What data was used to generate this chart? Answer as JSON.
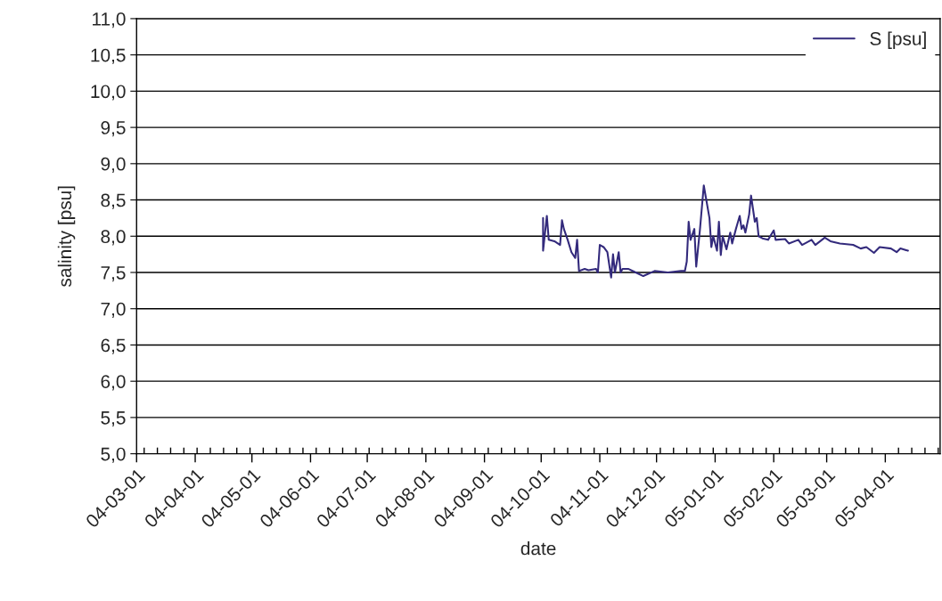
{
  "chart_data": {
    "type": "line",
    "xlabel": "date",
    "ylabel": "salinity [psu]",
    "xlim": [
      "2004-03-01",
      "2005-04-30"
    ],
    "xticks": [
      {
        "value": "2004-03-01",
        "label": "04-03-01"
      },
      {
        "value": "2004-04-01",
        "label": "04-04-01"
      },
      {
        "value": "2004-05-01",
        "label": "04-05-01"
      },
      {
        "value": "2004-06-01",
        "label": "04-06-01"
      },
      {
        "value": "2004-07-01",
        "label": "04-07-01"
      },
      {
        "value": "2004-08-01",
        "label": "04-08-01"
      },
      {
        "value": "2004-09-01",
        "label": "04-09-01"
      },
      {
        "value": "2004-10-01",
        "label": "04-10-01"
      },
      {
        "value": "2004-11-01",
        "label": "04-11-01"
      },
      {
        "value": "2004-12-01",
        "label": "04-12-01"
      },
      {
        "value": "2005-01-01",
        "label": "05-01-01"
      },
      {
        "value": "2005-02-01",
        "label": "05-02-01"
      },
      {
        "value": "2005-03-01",
        "label": "05-03-01"
      },
      {
        "value": "2005-04-01",
        "label": "05-04-01"
      }
    ],
    "ylim": [
      5,
      11
    ],
    "yticks": [
      {
        "value": 5,
        "label": "5,0"
      },
      {
        "value": 5.5,
        "label": "5,5"
      },
      {
        "value": 6,
        "label": "6,0"
      },
      {
        "value": 6.5,
        "label": "6,5"
      },
      {
        "value": 7,
        "label": "7,0"
      },
      {
        "value": 7.5,
        "label": "7,5"
      },
      {
        "value": 8,
        "label": "8,0"
      },
      {
        "value": 8.5,
        "label": "8,5"
      },
      {
        "value": 9,
        "label": "9,0"
      },
      {
        "value": 9.5,
        "label": "9,5"
      },
      {
        "value": 10,
        "label": "10,0"
      },
      {
        "value": 10.5,
        "label": "10,5"
      },
      {
        "value": 11,
        "label": "11,0"
      }
    ],
    "grid": "y",
    "legend": "top right",
    "marker": "none",
    "line_style": "solid",
    "series": [
      {
        "name": "S [psu]",
        "color": "#332a7c",
        "x": [
          "2004-10-02",
          "2004-10-02",
          "2004-10-04",
          "2004-10-05",
          "2004-10-08",
          "2004-10-11",
          "2004-10-12",
          "2004-10-13",
          "2004-10-15",
          "2004-10-17",
          "2004-10-19",
          "2004-10-20",
          "2004-10-21",
          "2004-10-24",
          "2004-10-26",
          "2004-10-30",
          "2004-10-31",
          "2004-11-01",
          "2004-11-03",
          "2004-11-05",
          "2004-11-07",
          "2004-11-08",
          "2004-11-09",
          "2004-11-11",
          "2004-11-12",
          "2004-11-13",
          "2004-11-16",
          "2004-11-20",
          "2004-11-24",
          "2004-11-30",
          "2004-12-07",
          "2004-12-14",
          "2004-12-16",
          "2004-12-17",
          "2004-12-18",
          "2004-12-19",
          "2004-12-21",
          "2004-12-22",
          "2004-12-24",
          "2004-12-26",
          "2004-12-27",
          "2004-12-29",
          "2004-12-30",
          "2004-12-31",
          "2005-01-02",
          "2005-01-03",
          "2005-01-04",
          "2005-01-05",
          "2005-01-07",
          "2005-01-09",
          "2005-01-10",
          "2005-01-12",
          "2005-01-14",
          "2005-01-15",
          "2005-01-16",
          "2005-01-17",
          "2005-01-19",
          "2005-01-20",
          "2005-01-22",
          "2005-01-23",
          "2005-01-24",
          "2005-01-26",
          "2005-01-29",
          "2005-02-01",
          "2005-02-02",
          "2005-02-07",
          "2005-02-09",
          "2005-02-14",
          "2005-02-16",
          "2005-02-21",
          "2005-02-23",
          "2005-02-28",
          "2005-03-03",
          "2005-03-08",
          "2005-03-15",
          "2005-03-19",
          "2005-03-22",
          "2005-03-26",
          "2005-03-29",
          "2005-04-04",
          "2005-04-07",
          "2005-04-09",
          "2005-04-13"
        ],
        "values": [
          8.25,
          7.8,
          8.28,
          7.95,
          7.93,
          7.88,
          8.22,
          8.1,
          7.95,
          7.78,
          7.7,
          7.95,
          7.52,
          7.55,
          7.53,
          7.55,
          7.5,
          7.88,
          7.85,
          7.78,
          7.43,
          7.75,
          7.5,
          7.78,
          7.5,
          7.55,
          7.55,
          7.5,
          7.45,
          7.52,
          7.5,
          7.52,
          7.52,
          7.65,
          8.2,
          7.95,
          8.1,
          7.58,
          8.1,
          8.7,
          8.55,
          8.25,
          7.85,
          8.0,
          7.8,
          8.2,
          7.74,
          8.0,
          7.82,
          8.05,
          7.9,
          8.1,
          8.28,
          8.1,
          8.15,
          8.05,
          8.3,
          8.56,
          8.2,
          8.25,
          8.0,
          7.97,
          7.95,
          8.08,
          7.95,
          7.96,
          7.9,
          7.95,
          7.88,
          7.95,
          7.88,
          7.98,
          7.93,
          7.9,
          7.88,
          7.83,
          7.85,
          7.77,
          7.85,
          7.83,
          7.78,
          7.83,
          7.8
        ]
      }
    ]
  }
}
